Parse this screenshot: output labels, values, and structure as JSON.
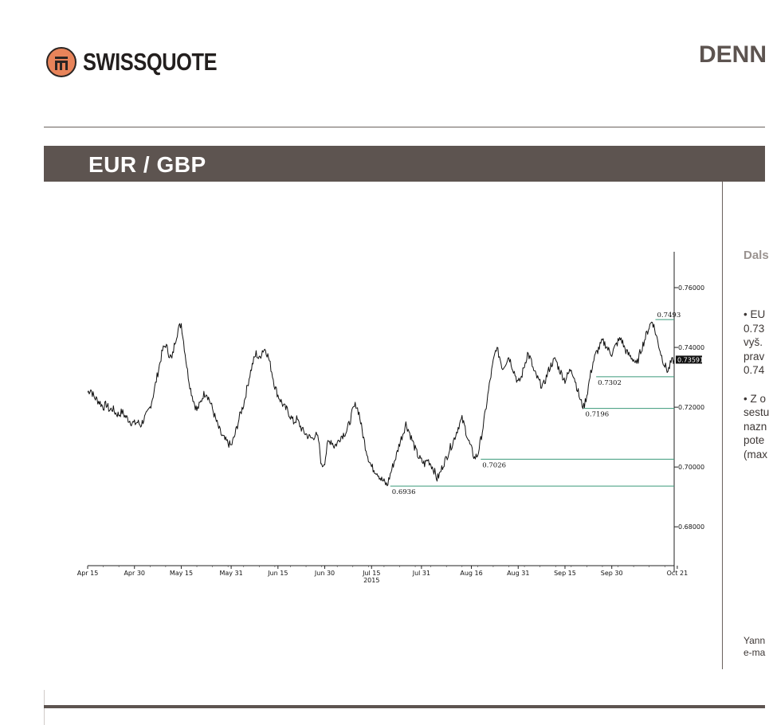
{
  "header": {
    "brand": "SWISSQUOTE",
    "title": "DENN"
  },
  "banner": {
    "title": "EUR / GBP"
  },
  "sidebar": {
    "heading": "Dals",
    "paragraph1": [
      "• EU",
      "0.73",
      "vyš.",
      "prav",
      "0.74"
    ],
    "paragraph2": [
      "• Z o",
      "sestu",
      "nazn",
      "pote",
      "(max"
    ],
    "author": [
      "Yann",
      "e-ma"
    ]
  },
  "chart_data": {
    "type": "line",
    "title": "",
    "xlabel": "",
    "ylabel": "",
    "ylim": [
      0.667,
      0.772
    ],
    "yticks": [
      0.68,
      0.7,
      0.72,
      0.74,
      0.76
    ],
    "ytick_labels": [
      "0.68000",
      "0.70000",
      "0.72000",
      "0.74000",
      "0.76000"
    ],
    "xtick_labels": [
      "Apr 15",
      "Apr 30",
      "May 15",
      "May 31",
      "Jun 15",
      "Jun 30",
      "Jul 15",
      "Jul 31",
      "Aug 16",
      "Aug 31",
      "Sep 15",
      "Sep 30",
      "Oct 21"
    ],
    "xtick_index": [
      0,
      15,
      30,
      46,
      61,
      76,
      91,
      107,
      123,
      138,
      153,
      168,
      189
    ],
    "year_label": "2015",
    "current_value": "0.73591",
    "levels": [
      {
        "value": 0.7493,
        "label": "0.7493",
        "start_index": 182
      },
      {
        "value": 0.7302,
        "label": "0.7302",
        "start_index": 163
      },
      {
        "value": 0.7196,
        "label": "0.7196",
        "start_index": 159
      },
      {
        "value": 0.7026,
        "label": "0.7026",
        "start_index": 126
      },
      {
        "value": 0.6936,
        "label": "0.6936",
        "start_index": 97
      }
    ],
    "series": [
      {
        "start": "Apr 15",
        "values": [
          0.725,
          0.726,
          0.7235,
          0.7225,
          0.7215,
          0.72,
          0.721,
          0.719,
          0.7195,
          0.718,
          0.7175,
          0.7185,
          0.717,
          0.716,
          0.715,
          0.7145,
          0.715,
          0.714,
          0.716,
          0.7175,
          0.72,
          0.724,
          0.729,
          0.734,
          0.739,
          0.741,
          0.738,
          0.736,
          0.742,
          0.746,
          0.748,
          0.74,
          0.732,
          0.726,
          0.722,
          0.719,
          0.721,
          0.724,
          0.725,
          0.7225,
          0.7195,
          0.716,
          0.713,
          0.7105,
          0.709,
          0.708,
          0.707,
          0.71,
          0.714,
          0.718,
          0.721,
          0.726,
          0.731,
          0.735,
          0.738,
          0.736,
          0.739,
          0.7395,
          0.7365,
          0.732,
          0.727,
          0.724,
          0.722,
          0.72,
          0.719,
          0.717,
          0.715,
          0.716,
          0.714,
          0.712,
          0.711,
          0.71,
          0.7095,
          0.711,
          0.709,
          0.7,
          0.702,
          0.708,
          0.709,
          0.707,
          0.708,
          0.71,
          0.711,
          0.712,
          0.715,
          0.719,
          0.721,
          0.718,
          0.712,
          0.707,
          0.703,
          0.7,
          0.699,
          0.698,
          0.696,
          0.695,
          0.6938,
          0.6975,
          0.701,
          0.704,
          0.708,
          0.711,
          0.7145,
          0.712,
          0.709,
          0.706,
          0.7035,
          0.702,
          0.701,
          0.7025,
          0.701,
          0.699,
          0.696,
          0.698,
          0.701,
          0.703,
          0.706,
          0.708,
          0.711,
          0.714,
          0.716,
          0.713,
          0.709,
          0.706,
          0.703,
          0.704,
          0.709,
          0.715,
          0.722,
          0.729,
          0.735,
          0.74,
          0.737,
          0.733,
          0.735,
          0.737,
          0.734,
          0.731,
          0.728,
          0.73,
          0.734,
          0.738,
          0.736,
          0.732,
          0.73,
          0.728,
          0.727,
          0.73,
          0.733,
          0.735,
          0.736,
          0.733,
          0.731,
          0.729,
          0.731,
          0.733,
          0.73,
          0.726,
          0.722,
          0.72,
          0.724,
          0.73,
          0.735,
          0.738,
          0.74,
          0.742,
          0.741,
          0.739,
          0.738,
          0.74,
          0.742,
          0.743,
          0.74,
          0.738,
          0.737,
          0.736,
          0.734,
          0.738,
          0.741,
          0.744,
          0.747,
          0.749,
          0.745,
          0.741,
          0.737,
          0.734,
          0.732,
          0.735,
          0.7359
        ]
      }
    ]
  }
}
